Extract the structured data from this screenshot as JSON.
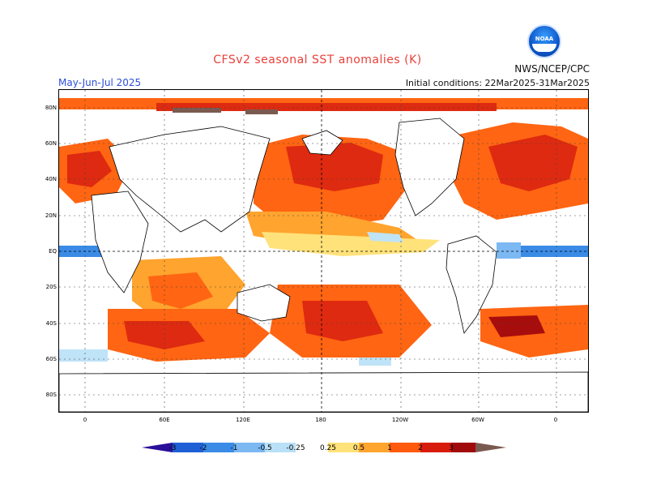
{
  "header": {
    "title": "CFSv2 seasonal SST anomalies (K)",
    "season": "May-Jun-Jul 2025",
    "agency": "NWS/NCEP/CPC",
    "initial_conditions": "Initial conditions: 22Mar2025-31Mar2025",
    "logo_text": "NOAA"
  },
  "map": {
    "lat_labels": [
      "80N",
      "60N",
      "40N",
      "20N",
      "EQ",
      "20S",
      "40S",
      "60S",
      "80S"
    ],
    "lon_labels": [
      "0",
      "60E",
      "120E",
      "180",
      "120W",
      "60W",
      "0"
    ]
  },
  "colorbar": {
    "labels": [
      "-3",
      "-2",
      "-1",
      "-0.5",
      "-0.25",
      "0.25",
      "0.5",
      "1",
      "2",
      "3"
    ],
    "colors": [
      "#2a0f99",
      "#1f5fd6",
      "#3a8be6",
      "#7cb8f2",
      "#b9e0f7",
      "#ffffff",
      "#ffe27a",
      "#ffa52e",
      "#ff5a0e",
      "#d81c0c",
      "#a00a0a",
      "#7a5a50"
    ]
  },
  "anomaly_colors": {
    "strong_warm": "#a80d0d",
    "warm2": "#de2a10",
    "warm1": "#ff6512",
    "warm05": "#ffa42e",
    "warm025": "#ffe27a",
    "cool025": "#bfe3f7",
    "cool05": "#7cb8f2",
    "cool1": "#3a8be6",
    "land": "#ffffff",
    "ice": "#7a5a50"
  }
}
